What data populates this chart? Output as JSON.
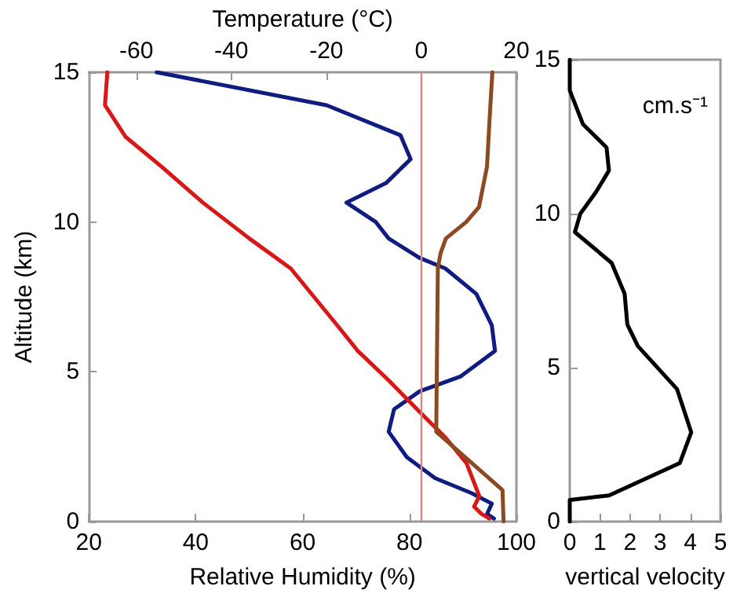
{
  "chart_data": [
    {
      "type": "line",
      "xlabel": "Relative Humidity (%)",
      "x2label": "Temperature (°C)",
      "ylabel": "Altitude (km)",
      "xlim": [
        20,
        100
      ],
      "xticks": [
        20,
        40,
        60,
        80,
        100
      ],
      "x2lim": [
        -70,
        20
      ],
      "x2ticks": [
        -60,
        -40,
        -20,
        0,
        20
      ],
      "ylim": [
        0,
        15
      ],
      "yticks": [
        0,
        5,
        10,
        15
      ],
      "ref_lines": [
        {
          "axis": "x2",
          "value": 0,
          "color": "#d08888"
        }
      ],
      "series": [
        {
          "color": "#101c80",
          "x": [
            32.7,
            64.5,
            78.3,
            80.2,
            75.6,
            68.2,
            73.7,
            76.1,
            81.9,
            86.7,
            92.5,
            95.4,
            96,
            89.6,
            81.9,
            77.1,
            76.1,
            79.5,
            84.8,
            91.6,
            95.4,
            94.5,
            95.8
          ],
          "values": [
            15,
            13.9,
            12.9,
            12.1,
            11.3,
            10.65,
            10,
            9.45,
            8.8,
            8.45,
            7.6,
            6.55,
            5.7,
            4.85,
            4.35,
            3.75,
            3,
            2.15,
            1.45,
            0.95,
            0.6,
            0.25,
            0.1
          ]
        },
        {
          "color": "#d81818",
          "axis": "x2",
          "x": [
            -66.1,
            -66.6,
            -62.3,
            -54.7,
            -46,
            -36.2,
            -27.5,
            -17.7,
            -13.4,
            -6.8,
            -0.3,
            5.1,
            9.5,
            12.2,
            11.1,
            12.7,
            14.3
          ],
          "values": [
            15,
            13.9,
            12.85,
            11.85,
            10.65,
            9.45,
            8.45,
            6.55,
            5.7,
            4.7,
            3.65,
            2.8,
            1.95,
            0.85,
            0.5,
            0.25,
            0.1
          ]
        },
        {
          "color": "#8b4a22",
          "x": [
            95.5,
            95,
            94.5,
            93,
            90.6,
            86.8,
            85.8,
            85.3,
            85,
            97.4,
            97.6
          ],
          "values": [
            15,
            13.5,
            11.85,
            10.5,
            10,
            9.45,
            8.95,
            8.45,
            3,
            1.05,
            0
          ]
        }
      ]
    },
    {
      "type": "line",
      "xlabel": "vertical velocity",
      "xlim": [
        0,
        5
      ],
      "xticks": [
        0,
        1,
        2,
        3,
        4,
        5
      ],
      "ylim": [
        0,
        15
      ],
      "yticks": [
        0,
        5,
        10,
        15
      ],
      "annotations": [
        "cm.s⁻¹"
      ],
      "series": [
        {
          "color": "#000000",
          "x": [
            0,
            0,
            0.44,
            1.22,
            1.3,
            0.87,
            0.35,
            0.17,
            1.39,
            1.82,
            1.91,
            2.26,
            3.56,
            4.03,
            3.65,
            1.3,
            0,
            0
          ],
          "values": [
            15,
            14,
            12.9,
            12.15,
            11.4,
            10.7,
            10,
            9.4,
            8.4,
            7.4,
            6.4,
            5.7,
            4.3,
            2.9,
            1.9,
            0.85,
            0.7,
            0
          ]
        }
      ]
    }
  ]
}
